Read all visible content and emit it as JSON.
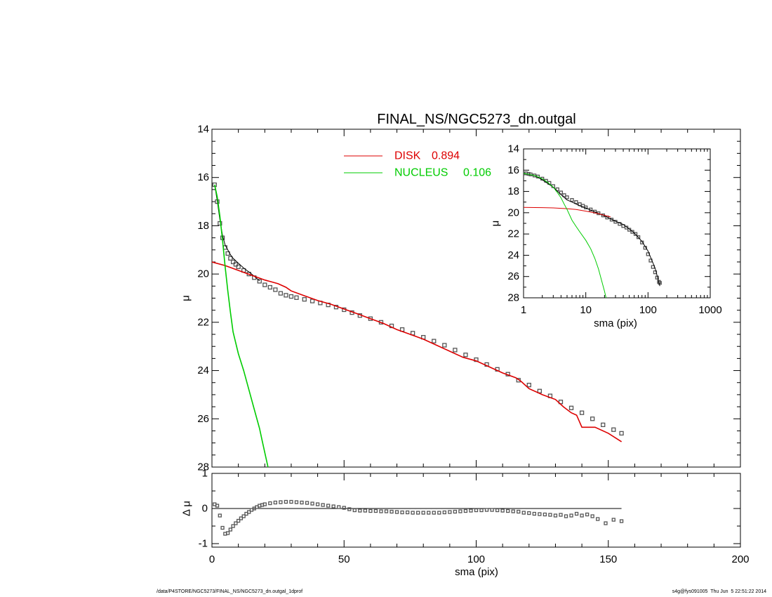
{
  "chart_data": [
    {
      "name": "main-profile",
      "type": "scatter",
      "title": "FINAL_NS/NGC5273_dn.outgal",
      "xlabel": "",
      "ylabel": "μ",
      "xlim": [
        0,
        200
      ],
      "ylim": [
        28,
        14
      ],
      "x_ticks": [
        0,
        50,
        100,
        150,
        200
      ],
      "y_ticks": [
        14,
        16,
        18,
        20,
        22,
        24,
        26,
        28
      ],
      "legend_position": "top-center",
      "series": [
        {
          "name": "",
          "kind": "points",
          "color": "#555555",
          "x": [
            1,
            2,
            3,
            4,
            5,
            6,
            7,
            8,
            9,
            10,
            12,
            14,
            16,
            18,
            20,
            22,
            24,
            26,
            28,
            30,
            32,
            35,
            38,
            41,
            44,
            47,
            50,
            53,
            56,
            60,
            64,
            68,
            72,
            76,
            80,
            84,
            88,
            92,
            96,
            100,
            104,
            108,
            112,
            116,
            120,
            124,
            128,
            132,
            136,
            140,
            144,
            148,
            152,
            155
          ],
          "y": [
            16.3,
            17.0,
            17.9,
            18.5,
            18.9,
            19.15,
            19.35,
            19.5,
            19.6,
            19.7,
            19.85,
            20.0,
            20.15,
            20.3,
            20.45,
            20.55,
            20.65,
            20.8,
            20.88,
            20.93,
            20.98,
            21.05,
            21.12,
            21.2,
            21.28,
            21.37,
            21.48,
            21.6,
            21.72,
            21.85,
            22.0,
            22.15,
            22.3,
            22.45,
            22.62,
            22.78,
            22.95,
            23.15,
            23.35,
            23.55,
            23.75,
            23.95,
            24.15,
            24.4,
            24.6,
            24.85,
            25.05,
            25.3,
            25.55,
            25.75,
            26.0,
            26.25,
            26.45,
            26.6
          ]
        },
        {
          "name": "",
          "kind": "line",
          "color": "#000000",
          "x": [
            1,
            2,
            3,
            4,
            5,
            6,
            7,
            8,
            10,
            12,
            15,
            18
          ],
          "y": [
            16.3,
            16.95,
            17.75,
            18.4,
            18.8,
            19.0,
            19.2,
            19.35,
            19.55,
            19.75,
            20.0,
            20.28
          ]
        },
        {
          "name": "DISK",
          "value_label": "0.894",
          "kind": "line",
          "color": "#dd0000",
          "x": [
            0,
            5,
            10,
            15,
            20,
            25,
            28,
            30,
            35,
            40,
            45,
            50,
            55,
            60,
            65,
            70,
            75,
            80,
            85,
            90,
            95,
            100,
            105,
            110,
            115,
            117,
            120,
            125,
            130,
            133,
            136,
            138,
            140,
            145,
            150,
            155
          ],
          "y": [
            19.5,
            19.65,
            19.85,
            20.05,
            20.25,
            20.4,
            20.55,
            20.7,
            20.9,
            21.1,
            21.25,
            21.45,
            21.65,
            21.85,
            22.05,
            22.3,
            22.5,
            22.7,
            22.95,
            23.2,
            23.45,
            23.6,
            23.85,
            24.1,
            24.3,
            24.45,
            24.75,
            25.0,
            25.2,
            25.5,
            25.75,
            25.85,
            26.35,
            26.35,
            26.6,
            26.95
          ]
        },
        {
          "name": "NUCLEUS",
          "value_label": "0.106",
          "kind": "line",
          "color": "#00cc00",
          "x": [
            1,
            2,
            3,
            4,
            5,
            6,
            7,
            8,
            10,
            12,
            14,
            16,
            18,
            19,
            20,
            21,
            22
          ],
          "y": [
            16.3,
            16.8,
            17.6,
            18.6,
            19.7,
            20.7,
            21.6,
            22.4,
            23.3,
            24.0,
            24.8,
            25.6,
            26.4,
            26.9,
            27.4,
            27.9,
            28.4
          ]
        }
      ]
    },
    {
      "name": "residual",
      "type": "scatter",
      "xlabel": "sma (pix)",
      "ylabel": "Δ μ",
      "xlim": [
        0,
        200
      ],
      "ylim": [
        -1.1,
        1.0
      ],
      "x_ticks": [
        0,
        50,
        100,
        150,
        200
      ],
      "y_ticks": [
        -1,
        0,
        1
      ],
      "zero_line": {
        "x_start": 1,
        "x_end": 155,
        "y": 0
      },
      "series": [
        {
          "name": "",
          "kind": "points",
          "color": "#555555",
          "x": [
            1,
            2,
            3,
            4,
            5,
            6,
            7,
            8,
            9,
            10,
            11,
            12,
            13,
            14,
            15,
            16,
            17,
            18,
            19,
            20,
            22,
            24,
            26,
            28,
            30,
            32,
            34,
            36,
            38,
            40,
            42,
            44,
            46,
            48,
            50,
            52,
            54,
            56,
            58,
            60,
            62,
            64,
            66,
            68,
            70,
            72,
            74,
            76,
            78,
            80,
            82,
            84,
            86,
            88,
            90,
            92,
            94,
            96,
            98,
            100,
            102,
            104,
            106,
            108,
            110,
            112,
            114,
            116,
            118,
            120,
            122,
            124,
            126,
            128,
            130,
            132,
            134,
            136,
            138,
            140,
            142,
            144,
            146,
            149,
            152,
            155
          ],
          "y": [
            0.12,
            0.08,
            -0.2,
            -0.55,
            -0.72,
            -0.7,
            -0.6,
            -0.5,
            -0.42,
            -0.35,
            -0.28,
            -0.22,
            -0.15,
            -0.1,
            -0.04,
            0.0,
            0.04,
            0.08,
            0.1,
            0.12,
            0.15,
            0.17,
            0.18,
            0.19,
            0.19,
            0.18,
            0.17,
            0.16,
            0.14,
            0.12,
            0.1,
            0.08,
            0.06,
            0.04,
            0.02,
            -0.02,
            -0.05,
            -0.06,
            -0.06,
            -0.07,
            -0.07,
            -0.08,
            -0.08,
            -0.09,
            -0.1,
            -0.11,
            -0.11,
            -0.12,
            -0.12,
            -0.12,
            -0.12,
            -0.12,
            -0.12,
            -0.11,
            -0.1,
            -0.09,
            -0.08,
            -0.07,
            -0.06,
            -0.05,
            -0.05,
            -0.04,
            -0.04,
            -0.05,
            -0.06,
            -0.07,
            -0.08,
            -0.09,
            -0.12,
            -0.13,
            -0.15,
            -0.16,
            -0.17,
            -0.18,
            -0.2,
            -0.18,
            -0.22,
            -0.2,
            -0.15,
            -0.2,
            -0.17,
            -0.22,
            -0.3,
            -0.42,
            -0.32,
            -0.36
          ]
        }
      ]
    },
    {
      "name": "inset-log-profile",
      "type": "scatter",
      "xlabel": "sma (pix)",
      "ylabel": "μ",
      "x_scale": "log",
      "xlim": [
        1,
        1000
      ],
      "ylim": [
        28,
        14
      ],
      "x_ticks": [
        1,
        10,
        100,
        1000
      ],
      "x_tick_labels": [
        "1",
        "10",
        "100",
        "1000"
      ],
      "y_ticks": [
        14,
        16,
        18,
        20,
        22,
        24,
        26,
        28
      ],
      "series": [
        {
          "name": "",
          "kind": "points",
          "color": "#555555",
          "x": [
            1,
            1.1,
            1.2,
            1.3,
            1.5,
            1.7,
            2,
            2.3,
            2.6,
            3,
            3.5,
            4,
            4.5,
            5,
            6,
            7,
            8,
            9,
            10,
            12,
            14,
            16,
            19,
            22,
            26,
            30,
            35,
            40,
            45,
            50,
            56,
            63,
            70,
            80,
            90,
            100,
            110,
            120,
            130,
            140,
            150,
            155
          ],
          "y": [
            16.3,
            16.3,
            16.35,
            16.4,
            16.5,
            16.6,
            16.8,
            17.0,
            17.2,
            17.5,
            17.8,
            18.1,
            18.35,
            18.55,
            18.8,
            19.0,
            19.2,
            19.35,
            19.5,
            19.7,
            19.9,
            20.05,
            20.25,
            20.45,
            20.65,
            20.85,
            21.05,
            21.25,
            21.4,
            21.6,
            21.8,
            22.0,
            22.3,
            22.8,
            23.3,
            23.9,
            24.5,
            25.1,
            25.6,
            26.1,
            26.5,
            26.6
          ]
        },
        {
          "name": "",
          "kind": "line",
          "color": "#000000",
          "x": [
            1,
            1.5,
            2,
            3,
            4,
            5,
            6,
            8,
            10,
            15,
            20,
            30,
            40,
            60,
            80,
            100,
            130,
            155
          ],
          "y": [
            16.3,
            16.5,
            16.9,
            17.6,
            18.3,
            18.8,
            19.0,
            19.35,
            19.55,
            20.0,
            20.3,
            20.8,
            21.1,
            21.9,
            22.7,
            23.6,
            25.2,
            26.9
          ]
        },
        {
          "name": "DISK",
          "kind": "line",
          "color": "#dd0000",
          "x": [
            1,
            2,
            3,
            5,
            7,
            10,
            15,
            20,
            25
          ],
          "y": [
            19.5,
            19.52,
            19.55,
            19.62,
            19.7,
            19.85,
            20.05,
            20.25,
            20.4
          ]
        },
        {
          "name": "NUCLEUS",
          "kind": "line",
          "color": "#00cc00",
          "x": [
            1,
            1.5,
            2,
            2.5,
            3,
            3.5,
            4,
            4.5,
            5,
            6,
            7,
            8,
            10,
            12,
            14,
            16,
            18,
            20,
            22
          ],
          "y": [
            16.3,
            16.5,
            16.8,
            17.2,
            17.6,
            18.1,
            18.6,
            19.2,
            19.7,
            20.7,
            21.3,
            21.8,
            22.6,
            23.4,
            24.3,
            25.3,
            26.4,
            27.4,
            28.4
          ]
        }
      ]
    }
  ],
  "footer": {
    "left": "/data/P4STORE/NGC5273/FINAL_NS/NGC5273_dn.outgal_1dprof",
    "right": "s4g@fys091005  Thu Jun  5 22:51:22 2014"
  }
}
